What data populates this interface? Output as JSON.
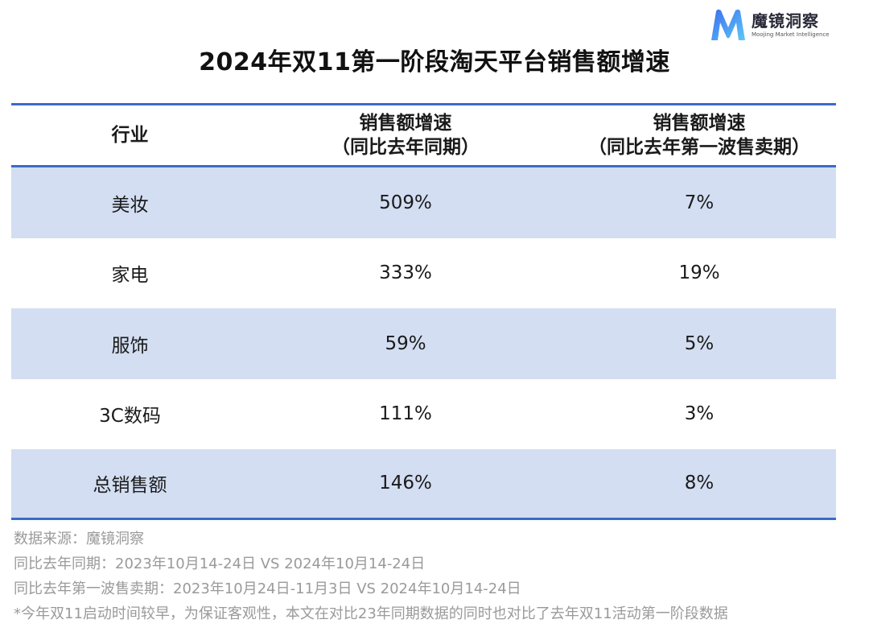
{
  "brand": {
    "name_cn": "魔镜洞察",
    "name_en": "Moojing Market Intelligence",
    "colors": {
      "logo_from": "#3b6ef0",
      "logo_to": "#5ec8f5"
    }
  },
  "title": "2024年双11第一阶段淘天平台销售额增速",
  "table": {
    "accent_color": "#3a6bc9",
    "stripe_color": "#d3def2",
    "headers": {
      "col1": "行业",
      "col2_line1": "销售额增速",
      "col2_line2": "（同比去年同期）",
      "col3_line1": "销售额增速",
      "col3_line2": "（同比去年第一波售卖期）"
    },
    "rows": [
      {
        "industry": "美妆",
        "yoy": "509%",
        "vs_first_wave": "7%"
      },
      {
        "industry": "家电",
        "yoy": "333%",
        "vs_first_wave": "19%"
      },
      {
        "industry": "服饰",
        "yoy": "59%",
        "vs_first_wave": "5%"
      },
      {
        "industry": "3C数码",
        "yoy": "111%",
        "vs_first_wave": "3%"
      },
      {
        "industry": "总销售额",
        "yoy": "146%",
        "vs_first_wave": "8%"
      }
    ]
  },
  "notes": [
    "数据来源：魔镜洞察",
    "同比去年同期：2023年10月14-24日 VS 2024年10月14-24日",
    "同比去年第一波售卖期：2023年10月24日-11月3日 VS 2024年10月14-24日",
    "*今年双11启动时间较早，为保证客观性，本文在对比23年同期数据的同时也对比了去年双11活动第一阶段数据"
  ]
}
